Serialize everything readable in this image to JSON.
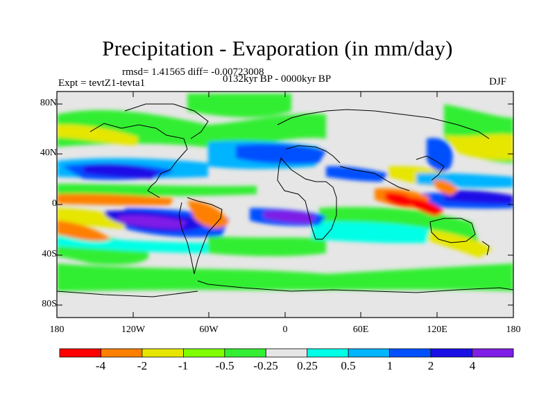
{
  "header": {
    "title": "Precipitation - Evaporation (in mm/day)",
    "rmsd": "rmsd= 1.41565 diff= -0.00723008",
    "experiment": "Expt = tevtZ1-tevta1",
    "period": "0132kyr BP - 0000kyr BP",
    "season": "DJF"
  },
  "axes": {
    "y_ticks": [
      "80N",
      "40N",
      "0",
      "40S",
      "80S"
    ],
    "x_ticks": [
      "180",
      "120W",
      "60W",
      "0",
      "60E",
      "120E",
      "180"
    ]
  },
  "colorbar": {
    "colors": [
      "#ff0000",
      "#ff8000",
      "#e6e600",
      "#7fff00",
      "#33ee33",
      "#e6e6e6",
      "#00ffe6",
      "#00b4ff",
      "#0050ff",
      "#1a10e6",
      "#7f1ee6"
    ],
    "labels": [
      "-4",
      "-2",
      "-1",
      "-0.5",
      "-0.25",
      "0.25",
      "0.5",
      "1",
      "2",
      "4"
    ]
  },
  "map_colors": {
    "no_change": "#e6e6e6",
    "coast": "#000000"
  }
}
